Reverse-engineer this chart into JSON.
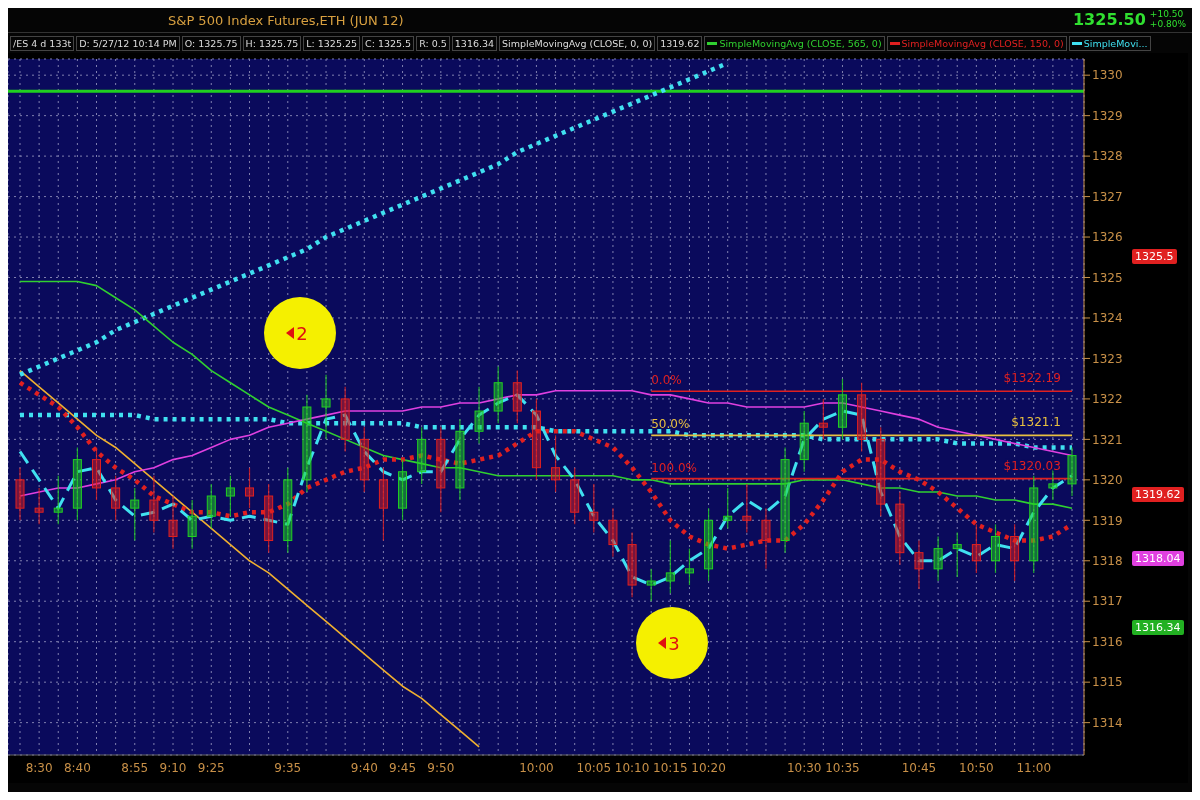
{
  "chart_data": {
    "type": "candlestick",
    "title": "S&P 500 Index Futures,ETH (JUN 12)",
    "categories": [
      null,
      "8:30",
      null,
      "8:40",
      null,
      null,
      "8:55",
      null,
      "9:10",
      null,
      "9:25",
      null,
      null,
      null,
      "9:35",
      null,
      null,
      null,
      "9:40",
      null,
      "9:45",
      null,
      "9:50",
      null,
      null,
      null,
      null,
      "10:00",
      null,
      null,
      "10:05",
      null,
      "10:10",
      null,
      "10:15",
      null,
      "10:20",
      null,
      null,
      null,
      null,
      "10:30",
      null,
      "10:35",
      null,
      null,
      null,
      "10:45",
      null,
      null,
      "10:50",
      null,
      null,
      "11:00",
      null,
      null
    ],
    "ohlc": [
      [
        1320.0,
        1320.3,
        1319.0,
        1319.3
      ],
      [
        1319.3,
        1319.8,
        1318.9,
        1319.2
      ],
      [
        1319.2,
        1320.1,
        1318.9,
        1319.3
      ],
      [
        1319.3,
        1320.8,
        1319.0,
        1320.5
      ],
      [
        1320.5,
        1320.8,
        1319.5,
        1319.8
      ],
      [
        1319.8,
        1320.1,
        1319.0,
        1319.3
      ],
      [
        1319.3,
        1319.8,
        1318.5,
        1319.5
      ],
      [
        1319.5,
        1320.1,
        1318.7,
        1319.0
      ],
      [
        1319.0,
        1319.6,
        1318.3,
        1318.6
      ],
      [
        1318.6,
        1319.5,
        1318.3,
        1319.1
      ],
      [
        1319.1,
        1319.9,
        1318.8,
        1319.6
      ],
      [
        1319.6,
        1320.1,
        1319.1,
        1319.8
      ],
      [
        1319.8,
        1320.3,
        1319.3,
        1319.6
      ],
      [
        1319.6,
        1319.9,
        1318.2,
        1318.5
      ],
      [
        1318.5,
        1320.3,
        1318.2,
        1320.0
      ],
      [
        1320.0,
        1322.1,
        1319.7,
        1321.8
      ],
      [
        1321.8,
        1322.6,
        1321.0,
        1322.0
      ],
      [
        1322.0,
        1322.3,
        1320.7,
        1321.0
      ],
      [
        1321.0,
        1321.3,
        1319.7,
        1320.0
      ],
      [
        1320.0,
        1320.3,
        1318.5,
        1319.3
      ],
      [
        1319.3,
        1320.5,
        1319.0,
        1320.2
      ],
      [
        1320.2,
        1321.3,
        1319.9,
        1321.0
      ],
      [
        1321.0,
        1321.3,
        1319.2,
        1319.8
      ],
      [
        1319.8,
        1321.5,
        1319.5,
        1321.2
      ],
      [
        1321.2,
        1322.3,
        1320.9,
        1321.7
      ],
      [
        1321.7,
        1322.8,
        1321.4,
        1322.4
      ],
      [
        1322.4,
        1322.7,
        1321.4,
        1321.7
      ],
      [
        1321.7,
        1322.0,
        1320.0,
        1320.3
      ],
      [
        1320.3,
        1321.1,
        1319.7,
        1320.0
      ],
      [
        1320.0,
        1320.3,
        1318.9,
        1319.2
      ],
      [
        1319.2,
        1319.9,
        1318.7,
        1319.0
      ],
      [
        1319.0,
        1319.3,
        1318.1,
        1318.4
      ],
      [
        1318.4,
        1318.7,
        1317.1,
        1317.4
      ],
      [
        1317.4,
        1317.8,
        1317.0,
        1317.5
      ],
      [
        1317.5,
        1318.5,
        1317.2,
        1317.7
      ],
      [
        1317.7,
        1318.3,
        1317.4,
        1317.8
      ],
      [
        1317.8,
        1319.3,
        1317.5,
        1319.0
      ],
      [
        1319.0,
        1319.8,
        1318.8,
        1319.1
      ],
      [
        1319.1,
        1319.9,
        1318.7,
        1319.0
      ],
      [
        1319.0,
        1319.3,
        1317.8,
        1318.5
      ],
      [
        1318.5,
        1320.8,
        1318.2,
        1320.5
      ],
      [
        1320.5,
        1321.7,
        1320.2,
        1321.4
      ],
      [
        1321.4,
        1322.0,
        1321.0,
        1321.3
      ],
      [
        1321.3,
        1322.5,
        1321.0,
        1322.1
      ],
      [
        1322.1,
        1322.4,
        1320.7,
        1321.0
      ],
      [
        1321.0,
        1321.3,
        1319.1,
        1319.4
      ],
      [
        1319.4,
        1319.7,
        1317.9,
        1318.2
      ],
      [
        1318.2,
        1318.5,
        1317.3,
        1317.8
      ],
      [
        1317.8,
        1318.6,
        1317.5,
        1318.3
      ],
      [
        1318.3,
        1318.7,
        1317.6,
        1318.4
      ],
      [
        1318.4,
        1318.9,
        1317.7,
        1318.0
      ],
      [
        1318.0,
        1318.9,
        1317.7,
        1318.6
      ],
      [
        1318.6,
        1318.9,
        1317.5,
        1318.0
      ],
      [
        1318.0,
        1320.1,
        1317.7,
        1319.8
      ],
      [
        1319.8,
        1320.3,
        1319.5,
        1319.9
      ],
      [
        1319.9,
        1320.8,
        1319.6,
        1320.6
      ]
    ],
    "series": [
      {
        "type": "line",
        "color": "#f0b030",
        "line_style": "solid",
        "values": [
          1322.7,
          1322.3,
          1321.9,
          1321.5,
          1321.1,
          1320.8,
          1320.4,
          1320.0,
          1319.6,
          1319.2,
          1318.8,
          1318.4,
          1318.0,
          1317.7,
          1317.3,
          1316.9,
          1316.5,
          1316.1,
          1315.7,
          1315.3,
          1314.9,
          1314.6,
          1314.2,
          1313.8,
          1313.4,
          null,
          null,
          null,
          null,
          null,
          null,
          null,
          null,
          null,
          null,
          null,
          null,
          null,
          null,
          null,
          null,
          null,
          null,
          null,
          null,
          null,
          null,
          null,
          null,
          null,
          null,
          null,
          null,
          null,
          null,
          null
        ]
      },
      {
        "type": "line",
        "color": "#40e0f0",
        "line_style": "dotted",
        "values": [
          1322.6,
          1322.8,
          1323.0,
          1323.2,
          1323.4,
          1323.7,
          1323.9,
          1324.1,
          1324.3,
          1324.5,
          1324.7,
          1324.9,
          1325.1,
          1325.3,
          1325.5,
          1325.7,
          1326.0,
          1326.2,
          1326.4,
          1326.6,
          1326.8,
          1327.0,
          1327.2,
          1327.4,
          1327.6,
          1327.8,
          1328.1,
          1328.3,
          1328.5,
          1328.7,
          1328.9,
          1329.1,
          1329.3,
          1329.5,
          1329.7,
          1329.9,
          1330.1,
          1330.3,
          null,
          null,
          null,
          null,
          null,
          null,
          null,
          null,
          null,
          null,
          null,
          null,
          null,
          null,
          null,
          null,
          null,
          null
        ]
      },
      {
        "type": "line",
        "color": "#40e0f0",
        "line_style": "dotted",
        "values": [
          1321.6,
          1321.6,
          1321.6,
          1321.6,
          1321.6,
          1321.6,
          1321.6,
          1321.5,
          1321.5,
          1321.5,
          1321.5,
          1321.5,
          1321.5,
          1321.5,
          1321.4,
          1321.4,
          1321.4,
          1321.4,
          1321.4,
          1321.4,
          1321.4,
          1321.3,
          1321.3,
          1321.3,
          1321.3,
          1321.3,
          1321.3,
          1321.3,
          1321.2,
          1321.2,
          1321.2,
          1321.2,
          1321.2,
          1321.2,
          1321.2,
          1321.1,
          1321.1,
          1321.1,
          1321.1,
          1321.1,
          1321.1,
          1321.1,
          1321.0,
          1321.0,
          1321.0,
          1321.0,
          1321.0,
          1321.0,
          1321.0,
          1320.9,
          1320.9,
          1320.9,
          1320.9,
          1320.8,
          1320.8,
          1320.8
        ]
      },
      {
        "type": "line",
        "name": "SimpleMovingAvg (CLOSE, 565, 0)",
        "color": "#30d030",
        "line_style": "solid",
        "values": [
          1324.9,
          1324.9,
          1324.9,
          1324.9,
          1324.8,
          1324.5,
          1324.2,
          1323.8,
          1323.4,
          1323.1,
          1322.7,
          1322.4,
          1322.1,
          1321.8,
          1321.6,
          1321.4,
          1321.2,
          1321.0,
          1320.8,
          1320.6,
          1320.5,
          1320.4,
          1320.3,
          1320.3,
          1320.2,
          1320.1,
          1320.1,
          1320.1,
          1320.1,
          1320.1,
          1320.1,
          1320.1,
          1320.0,
          1320.0,
          1319.9,
          1319.9,
          1319.9,
          1319.9,
          1319.9,
          1319.9,
          1319.9,
          1320.0,
          1320.0,
          1320.0,
          1319.9,
          1319.8,
          1319.8,
          1319.7,
          1319.7,
          1319.6,
          1319.6,
          1319.5,
          1319.5,
          1319.4,
          1319.4,
          1319.3
        ]
      },
      {
        "type": "line",
        "color": "#e040e0",
        "line_style": "solid",
        "values": [
          1319.6,
          1319.7,
          1319.8,
          1319.8,
          1319.9,
          1320.0,
          1320.2,
          1320.3,
          1320.5,
          1320.6,
          1320.8,
          1321.0,
          1321.1,
          1321.3,
          1321.4,
          1321.5,
          1321.6,
          1321.7,
          1321.7,
          1321.7,
          1321.7,
          1321.8,
          1321.8,
          1321.9,
          1321.9,
          1322.0,
          1322.1,
          1322.1,
          1322.2,
          1322.2,
          1322.2,
          1322.2,
          1322.2,
          1322.1,
          1322.1,
          1322.0,
          1321.9,
          1321.9,
          1321.8,
          1321.8,
          1321.8,
          1321.8,
          1321.9,
          1321.9,
          1321.8,
          1321.7,
          1321.6,
          1321.5,
          1321.3,
          1321.2,
          1321.1,
          1321.0,
          1320.9,
          1320.8,
          1320.7,
          1320.6
        ]
      },
      {
        "type": "line",
        "name": "SimpleMovingAvg (CLOSE, 150, 0)",
        "color": "#e02020",
        "line_style": "dotted",
        "values": [
          1322.4,
          1322.1,
          1321.8,
          1321.3,
          1320.7,
          1320.3,
          1320.0,
          1319.6,
          1319.4,
          1319.2,
          1319.2,
          1319.1,
          1319.2,
          1319.2,
          1319.4,
          1319.8,
          1320.0,
          1320.2,
          1320.3,
          1320.5,
          1320.5,
          1320.6,
          1320.5,
          1320.4,
          1320.5,
          1320.6,
          1320.9,
          1321.2,
          1321.2,
          1321.2,
          1321.0,
          1320.8,
          1320.3,
          1319.7,
          1319.0,
          1318.6,
          1318.4,
          1318.3,
          1318.4,
          1318.5,
          1318.5,
          1318.9,
          1319.5,
          1320.2,
          1320.5,
          1320.5,
          1320.2,
          1320.0,
          1319.7,
          1319.3,
          1318.9,
          1318.7,
          1318.5,
          1318.5,
          1318.6,
          1318.9
        ]
      },
      {
        "type": "line",
        "name": "SimpleMovi...",
        "color": "#40e0f0",
        "line_style": "dashed",
        "values": [
          1320.7,
          1320.0,
          1319.3,
          1320.2,
          1320.3,
          1319.5,
          1319.1,
          1319.2,
          1319.4,
          1319.0,
          1319.1,
          1319.0,
          1319.1,
          1319.0,
          1318.9,
          1320.3,
          1321.5,
          1321.6,
          1320.7,
          1320.2,
          1320.0,
          1320.2,
          1320.2,
          1321.0,
          1321.6,
          1321.9,
          1322.1,
          1321.6,
          1320.6,
          1320.0,
          1319.1,
          1318.5,
          1317.6,
          1317.4,
          1317.6,
          1318.0,
          1318.3,
          1319.1,
          1319.5,
          1319.2,
          1319.6,
          1321.0,
          1321.5,
          1321.7,
          1321.6,
          1319.7,
          1318.6,
          1318.0,
          1318.0,
          1318.3,
          1318.1,
          1318.4,
          1318.3,
          1319.2,
          1319.8,
          1320.1
        ]
      },
      {
        "type": "line",
        "name": "0.0%",
        "color": "#e02020",
        "line_style": "solid",
        "values": [
          null,
          null,
          null,
          null,
          null,
          null,
          null,
          null,
          null,
          null,
          null,
          null,
          null,
          null,
          null,
          null,
          null,
          null,
          null,
          null,
          null,
          null,
          null,
          null,
          null,
          null,
          null,
          null,
          null,
          null,
          null,
          null,
          null,
          1322.19,
          1322.19,
          1322.19,
          1322.19,
          1322.19,
          1322.19,
          1322.19,
          1322.19,
          1322.19,
          1322.19,
          1322.19,
          1322.19,
          1322.19,
          1322.19,
          1322.19,
          1322.19,
          1322.19,
          1322.19,
          1322.19,
          1322.19,
          1322.19,
          1322.19,
          1322.19
        ],
        "value_labels": [
          null,
          null,
          null,
          null,
          null,
          null,
          null,
          null,
          null,
          null,
          null,
          null,
          null,
          null,
          null,
          null,
          null,
          null,
          null,
          null,
          null,
          null,
          null,
          null,
          null,
          null,
          null,
          null,
          null,
          null,
          null,
          null,
          null,
          null,
          null,
          null,
          null,
          null,
          null,
          null,
          null,
          null,
          null,
          null,
          null,
          null,
          null,
          null,
          null,
          null,
          null,
          null,
          null,
          null,
          "$1322.19",
          null
        ]
      },
      {
        "type": "line",
        "name": "50.0%",
        "color": "#e8c040",
        "line_style": "solid",
        "values": [
          null,
          null,
          null,
          null,
          null,
          null,
          null,
          null,
          null,
          null,
          null,
          null,
          null,
          null,
          null,
          null,
          null,
          null,
          null,
          null,
          null,
          null,
          null,
          null,
          null,
          null,
          null,
          null,
          null,
          null,
          null,
          null,
          null,
          1321.1,
          1321.1,
          1321.1,
          1321.1,
          1321.1,
          1321.1,
          1321.1,
          1321.1,
          1321.1,
          1321.1,
          1321.1,
          1321.1,
          1321.1,
          1321.1,
          1321.1,
          1321.1,
          1321.1,
          1321.1,
          1321.1,
          1321.1,
          1321.1,
          1321.1,
          1321.1
        ],
        "value_labels": [
          null,
          null,
          null,
          null,
          null,
          null,
          null,
          null,
          null,
          null,
          null,
          null,
          null,
          null,
          null,
          null,
          null,
          null,
          null,
          null,
          null,
          null,
          null,
          null,
          null,
          null,
          null,
          null,
          null,
          null,
          null,
          null,
          null,
          null,
          null,
          null,
          null,
          null,
          null,
          null,
          null,
          null,
          null,
          null,
          null,
          null,
          null,
          null,
          null,
          null,
          null,
          null,
          null,
          null,
          "$1321.1",
          null
        ]
      },
      {
        "type": "line",
        "name": "100.0%",
        "color": "#e02020",
        "line_style": "solid",
        "values": [
          null,
          null,
          null,
          null,
          null,
          null,
          null,
          null,
          null,
          null,
          null,
          null,
          null,
          null,
          null,
          null,
          null,
          null,
          null,
          null,
          null,
          null,
          null,
          null,
          null,
          null,
          null,
          null,
          null,
          null,
          null,
          null,
          null,
          1320.03,
          1320.03,
          1320.03,
          1320.03,
          1320.03,
          1320.03,
          1320.03,
          1320.03,
          1320.03,
          1320.03,
          1320.03,
          1320.03,
          1320.03,
          1320.03,
          1320.03,
          1320.03,
          1320.03,
          1320.03,
          1320.03,
          1320.03,
          1320.03,
          1320.03,
          1320.03
        ],
        "value_labels": [
          null,
          null,
          null,
          null,
          null,
          null,
          null,
          null,
          null,
          null,
          null,
          null,
          null,
          null,
          null,
          null,
          null,
          null,
          null,
          null,
          null,
          null,
          null,
          null,
          null,
          null,
          null,
          null,
          null,
          null,
          null,
          null,
          null,
          null,
          null,
          null,
          null,
          null,
          null,
          null,
          null,
          null,
          null,
          null,
          null,
          null,
          null,
          null,
          null,
          null,
          null,
          null,
          null,
          null,
          "$1320.03",
          null
        ]
      }
    ],
    "ref_lines": [
      {
        "axis": "y",
        "value": 1329.6,
        "color": "#20d020",
        "line_style": "solid"
      }
    ],
    "annotations": [
      "1325.50",
      "+10.50",
      "+0.80%",
      "/ES 4 d 133t",
      "D: 5/27/12 10:14 PM",
      "O: 1325.75",
      "H: 1325.75",
      "L: 1325.25",
      "C: 1325.5",
      "R: 0.5",
      "1316.34",
      "SimpleMovingAvg (CLOSE, 0, 0)",
      "1319.62",
      "2",
      "3",
      "1325.5",
      "1319.62",
      "1318.04",
      "1316.34"
    ],
    "ylim": [
      1313.2,
      1330.4
    ],
    "yticks": [
      1314,
      1315,
      1316,
      1317,
      1318,
      1319,
      1320,
      1321,
      1322,
      1323,
      1324,
      1325,
      1326,
      1327,
      1328,
      1329,
      1330
    ],
    "grid": true,
    "legend": "top",
    "marker": "none"
  }
}
